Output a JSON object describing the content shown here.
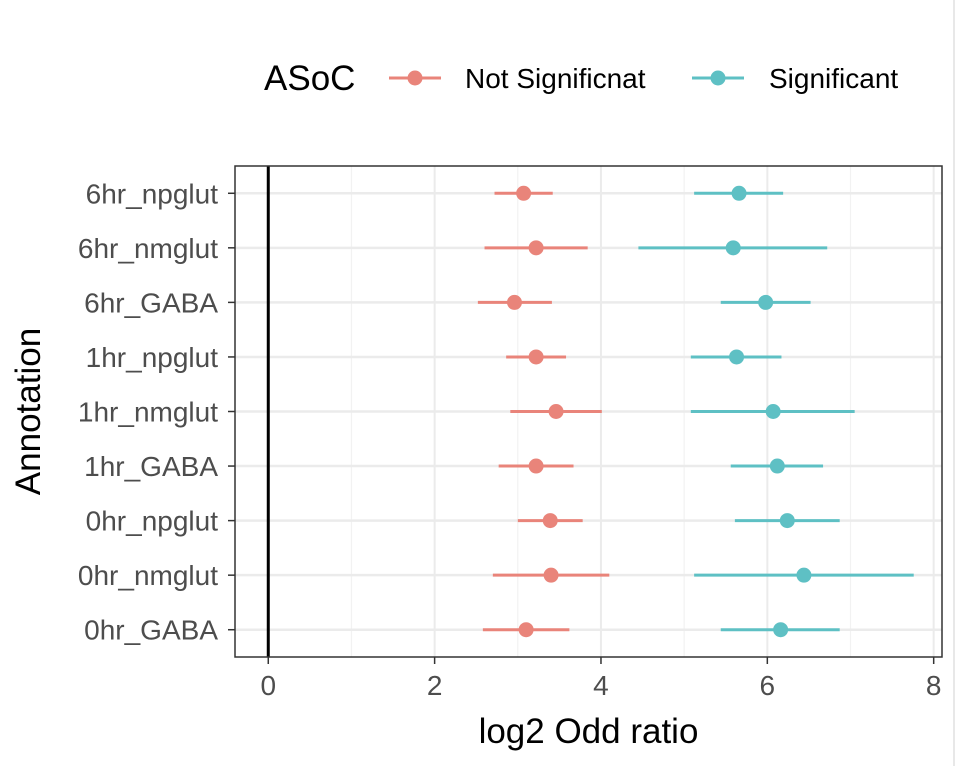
{
  "chart_data": {
    "type": "scatter",
    "xlabel": "log2 Odd ratio",
    "ylabel": "Annotation",
    "xlim": [
      -0.4,
      8.1
    ],
    "x_ticks": [
      0,
      2,
      4,
      6,
      8
    ],
    "x_tick_labels": [
      "0",
      "2",
      "4",
      "6",
      "8"
    ],
    "categories": [
      "6hr_npglut",
      "6hr_nmglut",
      "6hr_GABA",
      "1hr_npglut",
      "1hr_nmglut",
      "1hr_GABA",
      "0hr_npglut",
      "0hr_nmglut",
      "0hr_GABA"
    ],
    "grid": true,
    "legend": {
      "title": "ASoC",
      "position": "top"
    },
    "reference_line_x": 0,
    "series": [
      {
        "name": "Not Significnat",
        "color": "#E9847A",
        "points": [
          {
            "category": "6hr_npglut",
            "x": 3.07,
            "low": 2.72,
            "high": 3.42
          },
          {
            "category": "6hr_nmglut",
            "x": 3.22,
            "low": 2.6,
            "high": 3.84
          },
          {
            "category": "6hr_GABA",
            "x": 2.96,
            "low": 2.52,
            "high": 3.41
          },
          {
            "category": "1hr_npglut",
            "x": 3.22,
            "low": 2.86,
            "high": 3.58
          },
          {
            "category": "1hr_nmglut",
            "x": 3.46,
            "low": 2.91,
            "high": 4.01
          },
          {
            "category": "1hr_GABA",
            "x": 3.22,
            "low": 2.77,
            "high": 3.67
          },
          {
            "category": "0hr_npglut",
            "x": 3.39,
            "low": 3.0,
            "high": 3.78
          },
          {
            "category": "0hr_nmglut",
            "x": 3.4,
            "low": 2.7,
            "high": 4.1
          },
          {
            "category": "0hr_GABA",
            "x": 3.1,
            "low": 2.58,
            "high": 3.62
          }
        ]
      },
      {
        "name": "Significant",
        "color": "#5EC0C4",
        "points": [
          {
            "category": "6hr_npglut",
            "x": 5.66,
            "low": 5.12,
            "high": 6.19
          },
          {
            "category": "6hr_nmglut",
            "x": 5.59,
            "low": 4.45,
            "high": 6.72
          },
          {
            "category": "6hr_GABA",
            "x": 5.98,
            "low": 5.44,
            "high": 6.52
          },
          {
            "category": "1hr_npglut",
            "x": 5.63,
            "low": 5.08,
            "high": 6.17
          },
          {
            "category": "1hr_nmglut",
            "x": 6.07,
            "low": 5.08,
            "high": 7.05
          },
          {
            "category": "1hr_GABA",
            "x": 6.12,
            "low": 5.56,
            "high": 6.67
          },
          {
            "category": "0hr_npglut",
            "x": 6.24,
            "low": 5.61,
            "high": 6.87
          },
          {
            "category": "0hr_nmglut",
            "x": 6.44,
            "low": 5.12,
            "high": 7.76
          },
          {
            "category": "0hr_GABA",
            "x": 6.16,
            "low": 5.44,
            "high": 6.87
          }
        ]
      }
    ]
  }
}
